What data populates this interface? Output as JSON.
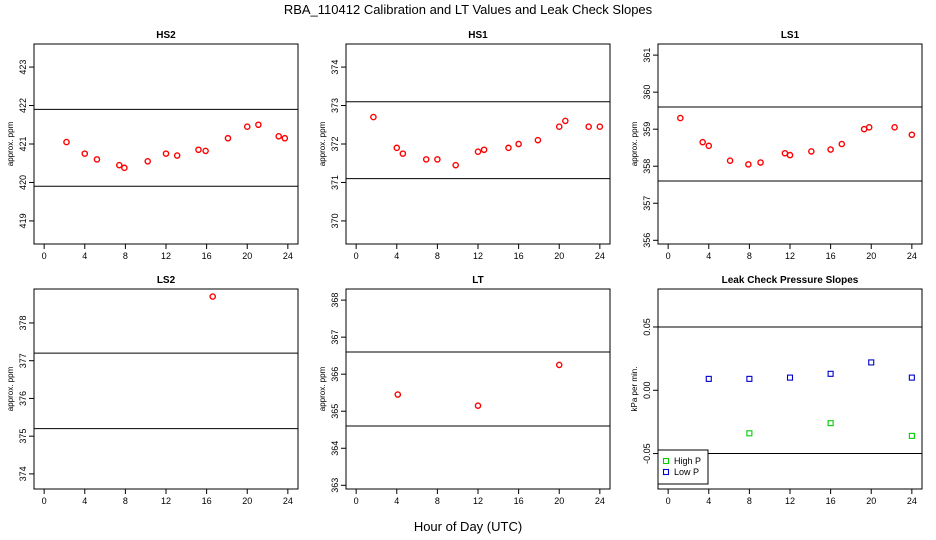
{
  "figure": {
    "title": "RBA_110412  Calibration and LT Values and Leak Check Slopes",
    "xlabel": "Hour of Day (UTC)"
  },
  "chart_data": [
    {
      "type": "scatter",
      "title": "HS2",
      "xlabel": "Hour of Day (UTC)",
      "ylabel": "approx. ppm",
      "xlim": [
        -1,
        25
      ],
      "ylim": [
        418.4,
        423.6
      ],
      "xticks": [
        "0",
        "4",
        "8",
        "12",
        "16",
        "20",
        "24"
      ],
      "yticks": [
        "419",
        "420",
        "421",
        "422",
        "423"
      ],
      "hlines": [
        421.9,
        419.9
      ],
      "color": "#ff0000",
      "marker": "circle",
      "x": [
        2.2,
        4.0,
        5.2,
        7.4,
        7.9,
        10.2,
        12.0,
        13.1,
        15.2,
        15.9,
        18.1,
        20.0,
        21.1,
        23.1,
        23.7
      ],
      "y": [
        421.05,
        420.75,
        420.6,
        420.45,
        420.38,
        420.55,
        420.75,
        420.7,
        420.85,
        420.82,
        421.15,
        421.45,
        421.5,
        421.2,
        421.15
      ]
    },
    {
      "type": "scatter",
      "title": "HS1",
      "xlabel": "Hour of Day (UTC)",
      "ylabel": "approx. ppm",
      "xlim": [
        -1,
        25
      ],
      "ylim": [
        369.4,
        374.6
      ],
      "xticks": [
        "0",
        "4",
        "8",
        "12",
        "16",
        "20",
        "24"
      ],
      "yticks": [
        "370",
        "371",
        "372",
        "373",
        "374"
      ],
      "hlines": [
        373.1,
        371.1
      ],
      "color": "#ff0000",
      "marker": "circle",
      "x": [
        1.7,
        4.0,
        4.6,
        6.9,
        8.0,
        9.8,
        12.0,
        12.6,
        15.0,
        16.0,
        17.9,
        20.0,
        20.6,
        22.9,
        24.0
      ],
      "y": [
        372.7,
        371.9,
        371.75,
        371.6,
        371.6,
        371.45,
        371.8,
        371.85,
        371.9,
        372.0,
        372.1,
        372.45,
        372.6,
        372.45,
        372.45
      ]
    },
    {
      "type": "scatter",
      "title": "LS1",
      "xlabel": "Hour of Day (UTC)",
      "ylabel": "approx. ppm",
      "xlim": [
        -1,
        25
      ],
      "ylim": [
        355.9,
        361.3
      ],
      "xticks": [
        "0",
        "4",
        "8",
        "12",
        "16",
        "20",
        "24"
      ],
      "yticks": [
        "356",
        "357",
        "358",
        "359",
        "360",
        "361"
      ],
      "hlines": [
        359.6,
        357.6
      ],
      "color": "#ff0000",
      "marker": "circle",
      "x": [
        1.2,
        3.4,
        4.0,
        6.1,
        7.9,
        9.1,
        11.5,
        12.0,
        14.1,
        16.0,
        17.1,
        19.3,
        19.8,
        22.3,
        24.0
      ],
      "y": [
        359.3,
        358.65,
        358.55,
        358.15,
        358.05,
        358.1,
        358.35,
        358.3,
        358.4,
        358.45,
        358.6,
        359.0,
        359.05,
        359.05,
        358.85
      ]
    },
    {
      "type": "scatter",
      "title": "LS2",
      "xlabel": "Hour of Day (UTC)",
      "ylabel": "approx. ppm",
      "xlim": [
        -1,
        25
      ],
      "ylim": [
        373.6,
        378.9
      ],
      "xticks": [
        "0",
        "4",
        "8",
        "12",
        "16",
        "20",
        "24"
      ],
      "yticks": [
        "374",
        "375",
        "376",
        "377",
        "378"
      ],
      "hlines": [
        377.2,
        375.2
      ],
      "color": "#ff0000",
      "marker": "circle",
      "x": [
        16.6
      ],
      "y": [
        378.7
      ]
    },
    {
      "type": "scatter",
      "title": "LT",
      "xlabel": "Hour of Day (UTC)",
      "ylabel": "approx. ppm",
      "xlim": [
        -1,
        25
      ],
      "ylim": [
        362.9,
        368.3
      ],
      "xticks": [
        "0",
        "4",
        "8",
        "12",
        "16",
        "20",
        "24"
      ],
      "yticks": [
        "363",
        "364",
        "365",
        "366",
        "367",
        "368"
      ],
      "hlines": [
        366.6,
        364.6
      ],
      "color": "#ff0000",
      "marker": "circle",
      "x": [
        4.1,
        12.0,
        20.0
      ],
      "y": [
        365.45,
        365.15,
        366.25
      ]
    },
    {
      "type": "scatter",
      "title": "Leak Check Pressure Slopes",
      "xlabel": "Hour of Day (UTC)",
      "ylabel": "kPa per min.",
      "xlim": [
        -1,
        25
      ],
      "ylim": [
        -0.078,
        0.08
      ],
      "xticks": [
        "0",
        "4",
        "8",
        "12",
        "16",
        "20",
        "24"
      ],
      "yticks": [
        "-0.05",
        "0.00",
        "0.05"
      ],
      "hlines": [
        0.05,
        -0.05
      ],
      "legend": "bottom-left",
      "series": [
        {
          "name": "High P",
          "color": "#00cc00",
          "marker": "square",
          "x": [
            8.0,
            16.0,
            24.0
          ],
          "y": [
            -0.034,
            -0.026,
            -0.036
          ]
        },
        {
          "name": "Low P",
          "color": "#0000cc",
          "marker": "square",
          "x": [
            4.0,
            8.0,
            12.0,
            16.0,
            20.0,
            24.0
          ],
          "y": [
            0.009,
            0.009,
            0.01,
            0.013,
            0.022,
            0.01
          ]
        }
      ]
    }
  ]
}
